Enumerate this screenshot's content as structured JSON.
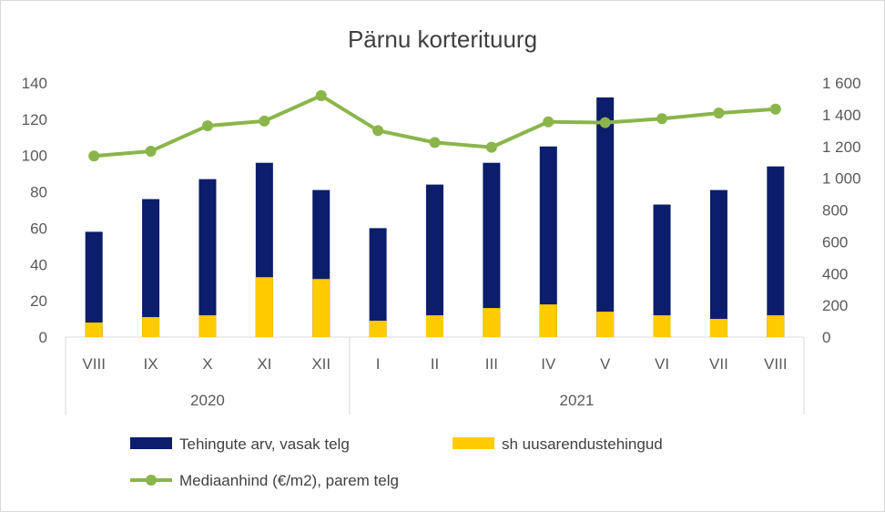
{
  "chart_data": {
    "type": "bar",
    "title": "Pärnu korterituurg",
    "categories": [
      "VIII",
      "IX",
      "X",
      "XI",
      "XII",
      "I",
      "II",
      "III",
      "IV",
      "V",
      "VI",
      "VII",
      "VIII"
    ],
    "groups": [
      {
        "label": "2020",
        "count": 5
      },
      {
        "label": "2021",
        "count": 8
      }
    ],
    "left_axis": {
      "min": 0,
      "max": 140,
      "step": 20,
      "ticks": [
        "0",
        "20",
        "40",
        "60",
        "80",
        "100",
        "120",
        "140"
      ]
    },
    "right_axis": {
      "min": 0,
      "max": 1600,
      "step": 200,
      "ticks": [
        "0",
        "200",
        "400",
        "600",
        "800",
        "1 000",
        "1 200",
        "1 400",
        "1 600"
      ]
    },
    "series": [
      {
        "name": "Tehingute arv, vasak telg",
        "type": "bar",
        "axis": "left",
        "color": "#0b1d6b",
        "values": [
          58,
          76,
          87,
          96,
          81,
          60,
          84,
          96,
          105,
          132,
          73,
          81,
          94
        ]
      },
      {
        "name": "sh uusarendustehingud",
        "type": "bar",
        "axis": "left",
        "color": "#ffcc00",
        "values": [
          8,
          11,
          12,
          33,
          32,
          9,
          12,
          16,
          18,
          14,
          12,
          10,
          12
        ]
      },
      {
        "name": "Mediaanhind (€/m2), parem telg",
        "type": "line",
        "axis": "right",
        "color": "#8bb54a",
        "values": [
          1140,
          1170,
          1330,
          1360,
          1520,
          1300,
          1225,
          1195,
          1355,
          1350,
          1375,
          1410,
          1435
        ]
      }
    ],
    "grid": false,
    "legend_position": "bottom"
  }
}
